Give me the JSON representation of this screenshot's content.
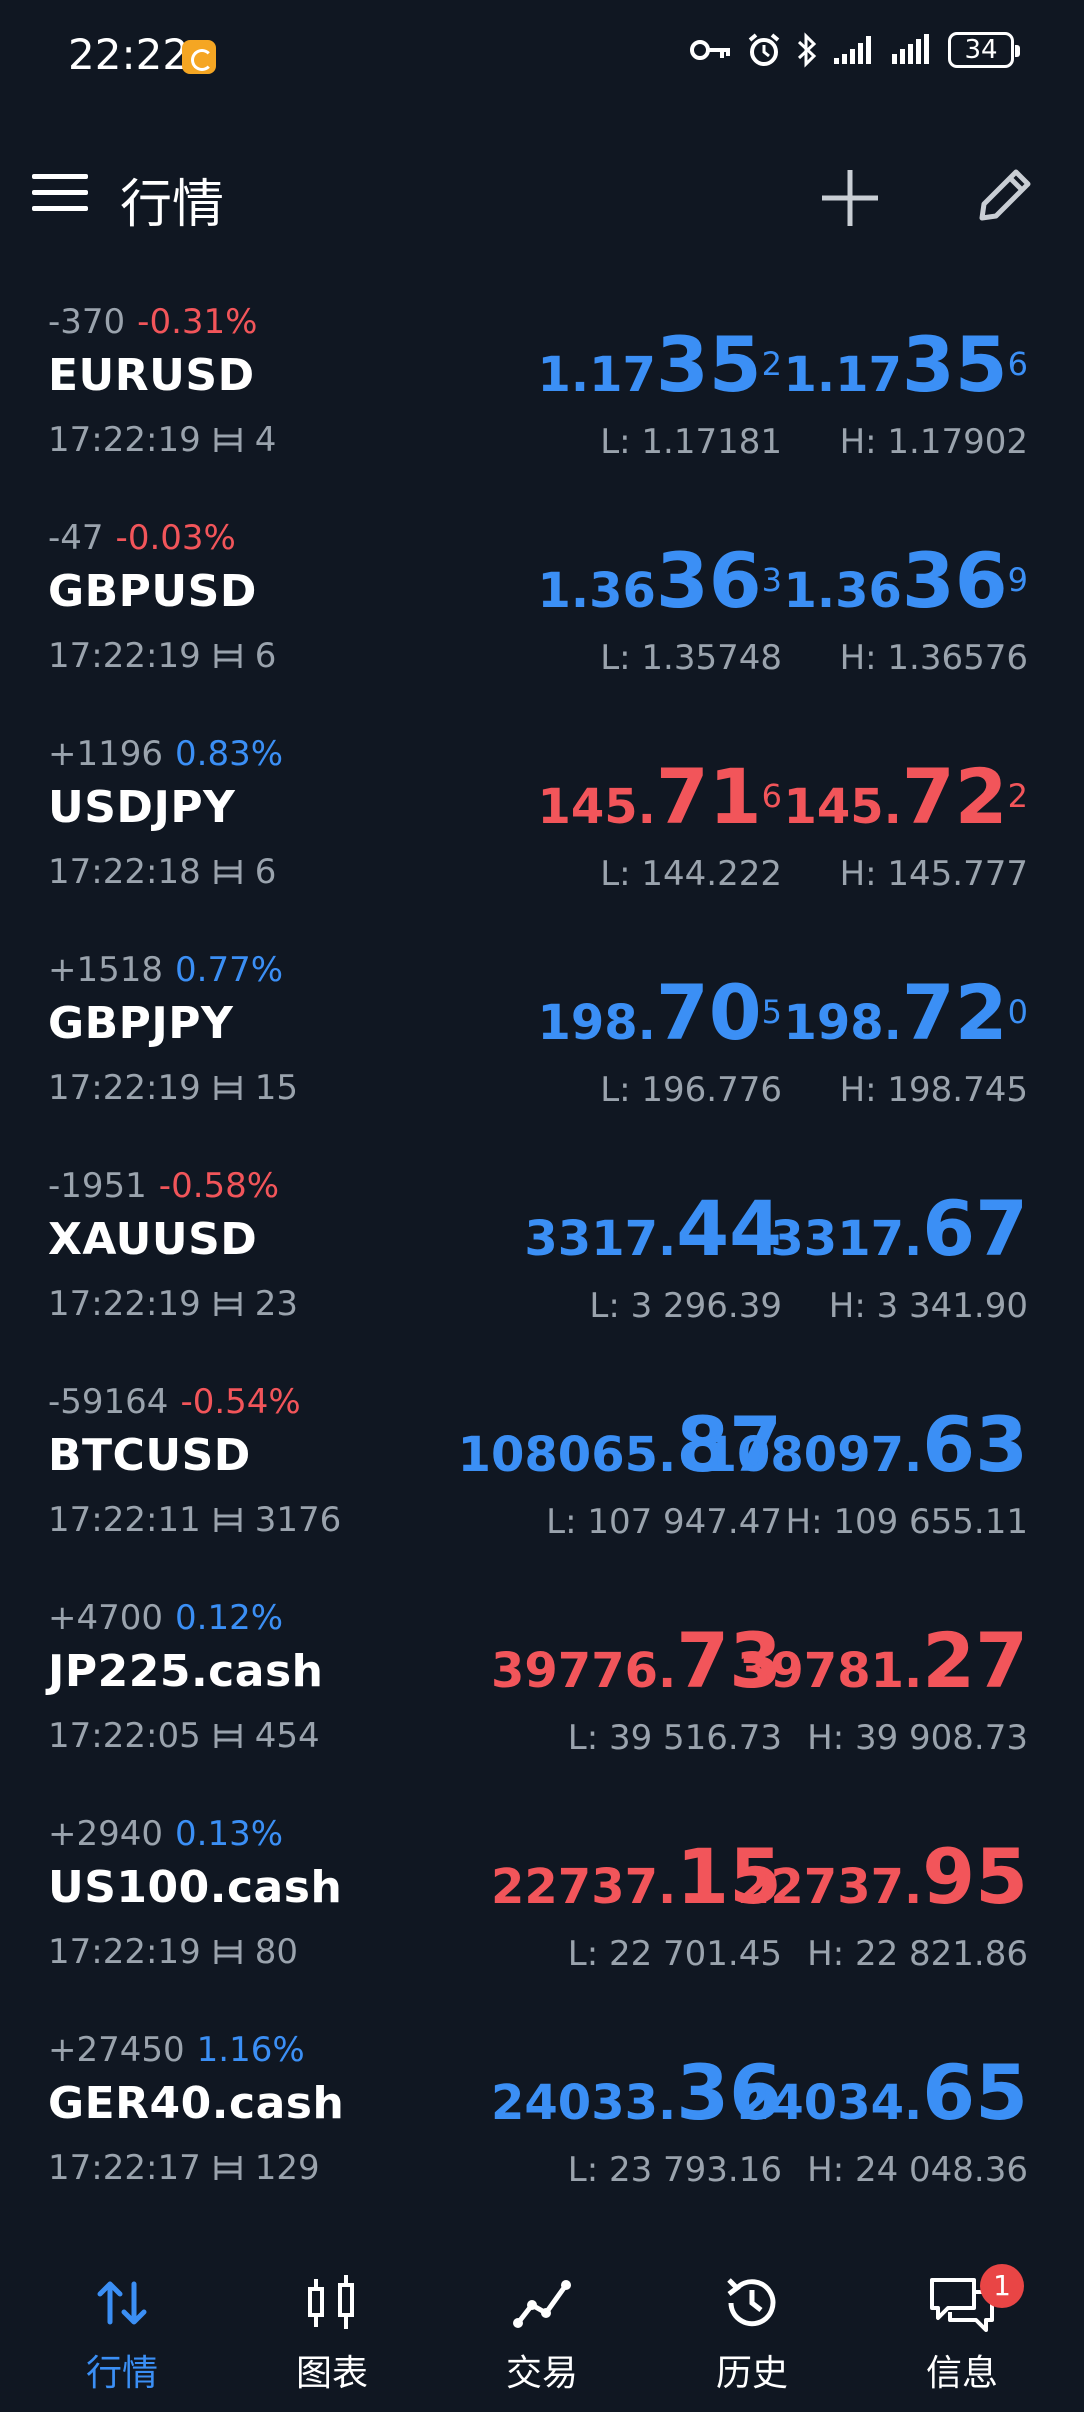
{
  "status_bar": {
    "time": "22:22",
    "battery": "34"
  },
  "header": {
    "title": "行情"
  },
  "quotes": [
    {
      "points": "-370",
      "percent": "-0.31%",
      "percent_color": "red",
      "symbol": "EURUSD",
      "time": "17:22:19",
      "spread": "4",
      "color": "blue",
      "bid": {
        "base": "1.17",
        "big": "35",
        "sup": "2"
      },
      "ask": {
        "base": "1.17",
        "big": "35",
        "sup": "6"
      },
      "low": "L: 1.17181",
      "high": "H: 1.17902"
    },
    {
      "points": "-47",
      "percent": "-0.03%",
      "percent_color": "red",
      "symbol": "GBPUSD",
      "time": "17:22:19",
      "spread": "6",
      "color": "blue",
      "bid": {
        "base": "1.36",
        "big": "36",
        "sup": "3"
      },
      "ask": {
        "base": "1.36",
        "big": "36",
        "sup": "9"
      },
      "low": "L: 1.35748",
      "high": "H: 1.36576"
    },
    {
      "points": "+1196",
      "percent": "0.83%",
      "percent_color": "blue",
      "symbol": "USDJPY",
      "time": "17:22:18",
      "spread": "6",
      "color": "red",
      "bid": {
        "base": "145.",
        "big": "71",
        "sup": "6"
      },
      "ask": {
        "base": "145.",
        "big": "72",
        "sup": "2"
      },
      "low": "L: 144.222",
      "high": "H: 145.777"
    },
    {
      "points": "+1518",
      "percent": "0.77%",
      "percent_color": "blue",
      "symbol": "GBPJPY",
      "time": "17:22:19",
      "spread": "15",
      "color": "blue",
      "bid": {
        "base": "198.",
        "big": "70",
        "sup": "5"
      },
      "ask": {
        "base": "198.",
        "big": "72",
        "sup": "0"
      },
      "low": "L: 196.776",
      "high": "H: 198.745"
    },
    {
      "points": "-1951",
      "percent": "-0.58%",
      "percent_color": "red",
      "symbol": "XAUUSD",
      "time": "17:22:19",
      "spread": "23",
      "color": "blue",
      "bid": {
        "base": "3317.",
        "big": "44",
        "sup": ""
      },
      "ask": {
        "base": "3317.",
        "big": "67",
        "sup": ""
      },
      "low": "L: 3 296.39",
      "high": "H: 3 341.90"
    },
    {
      "points": "-59164",
      "percent": "-0.54%",
      "percent_color": "red",
      "symbol": "BTCUSD",
      "time": "17:22:11",
      "spread": "3176",
      "color": "blue",
      "bid": {
        "base": "108065.",
        "big": "87",
        "sup": ""
      },
      "ask": {
        "base": "108097.",
        "big": "63",
        "sup": ""
      },
      "low": "L: 107 947.47",
      "high": "H: 109 655.11"
    },
    {
      "points": "+4700",
      "percent": "0.12%",
      "percent_color": "blue",
      "symbol": "JP225.cash",
      "time": "17:22:05",
      "spread": "454",
      "color": "red",
      "bid": {
        "base": "39776.",
        "big": "73",
        "sup": ""
      },
      "ask": {
        "base": "39781.",
        "big": "27",
        "sup": ""
      },
      "low": "L: 39 516.73",
      "high": "H: 39 908.73"
    },
    {
      "points": "+2940",
      "percent": "0.13%",
      "percent_color": "blue",
      "symbol": "US100.cash",
      "time": "17:22:19",
      "spread": "80",
      "color": "red",
      "bid": {
        "base": "22737.",
        "big": "15",
        "sup": ""
      },
      "ask": {
        "base": "22737.",
        "big": "95",
        "sup": ""
      },
      "low": "L: 22 701.45",
      "high": "H: 22 821.86"
    },
    {
      "points": "+27450",
      "percent": "1.16%",
      "percent_color": "blue",
      "symbol": "GER40.cash",
      "time": "17:22:17",
      "spread": "129",
      "color": "blue",
      "bid": {
        "base": "24033.",
        "big": "36",
        "sup": ""
      },
      "ask": {
        "base": "24034.",
        "big": "65",
        "sup": ""
      },
      "low": "L: 23 793.16",
      "high": "H: 24 048.36"
    }
  ],
  "tabs": [
    {
      "label": "行情",
      "icon": "quotes-icon",
      "active": true
    },
    {
      "label": "图表",
      "icon": "chart-icon",
      "active": false
    },
    {
      "label": "交易",
      "icon": "trade-icon",
      "active": false
    },
    {
      "label": "历史",
      "icon": "history-icon",
      "active": false
    },
    {
      "label": "信息",
      "icon": "messages-icon",
      "active": false,
      "badge": "1"
    }
  ],
  "colors": {
    "blue": "#3b8ff5",
    "red": "#f2555a",
    "background": "#101722",
    "muted": "#9aa3ad"
  }
}
